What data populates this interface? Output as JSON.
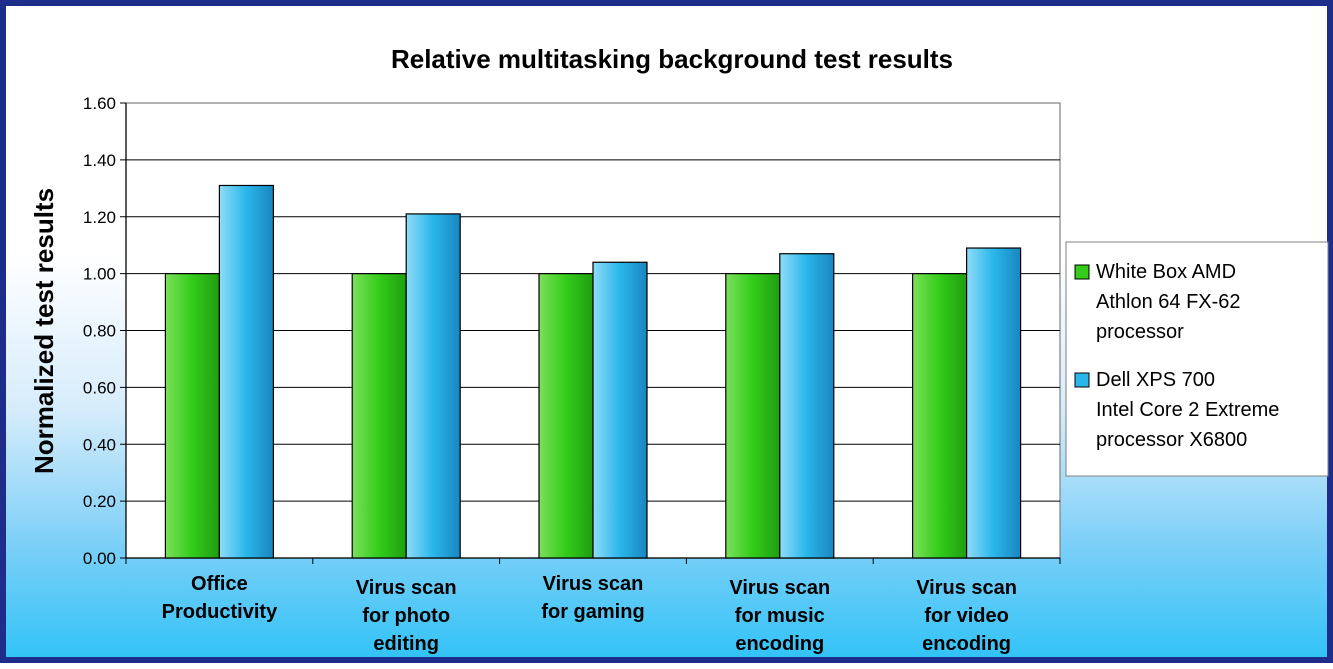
{
  "chart_data": {
    "type": "bar",
    "title": "Relative multitasking background test results",
    "xlabel": "",
    "ylabel": "Normalized test results",
    "ylim": [
      0,
      1.6
    ],
    "yticks": [
      "0.00",
      "0.20",
      "0.40",
      "0.60",
      "0.80",
      "1.00",
      "1.20",
      "1.40",
      "1.60"
    ],
    "grid": true,
    "legend_position": "right",
    "categories": [
      [
        "Office",
        "Productivity"
      ],
      [
        "Virus scan",
        "for photo",
        "editing"
      ],
      [
        "Virus scan",
        "for gaming"
      ],
      [
        "Virus scan",
        "for music",
        "encoding"
      ],
      [
        "Virus scan",
        "for video",
        "encoding"
      ]
    ],
    "series": [
      {
        "name": [
          "White Box AMD",
          "Athlon 64 FX-62",
          "processor"
        ],
        "color": "#33cc1a",
        "values": [
          1.0,
          1.0,
          1.0,
          1.0,
          1.0
        ]
      },
      {
        "name": [
          "Dell XPS 700",
          "Intel Core 2 Extreme",
          "processor X6800"
        ],
        "color": "#29b6ea",
        "values": [
          1.31,
          1.21,
          1.04,
          1.07,
          1.09
        ]
      }
    ]
  }
}
